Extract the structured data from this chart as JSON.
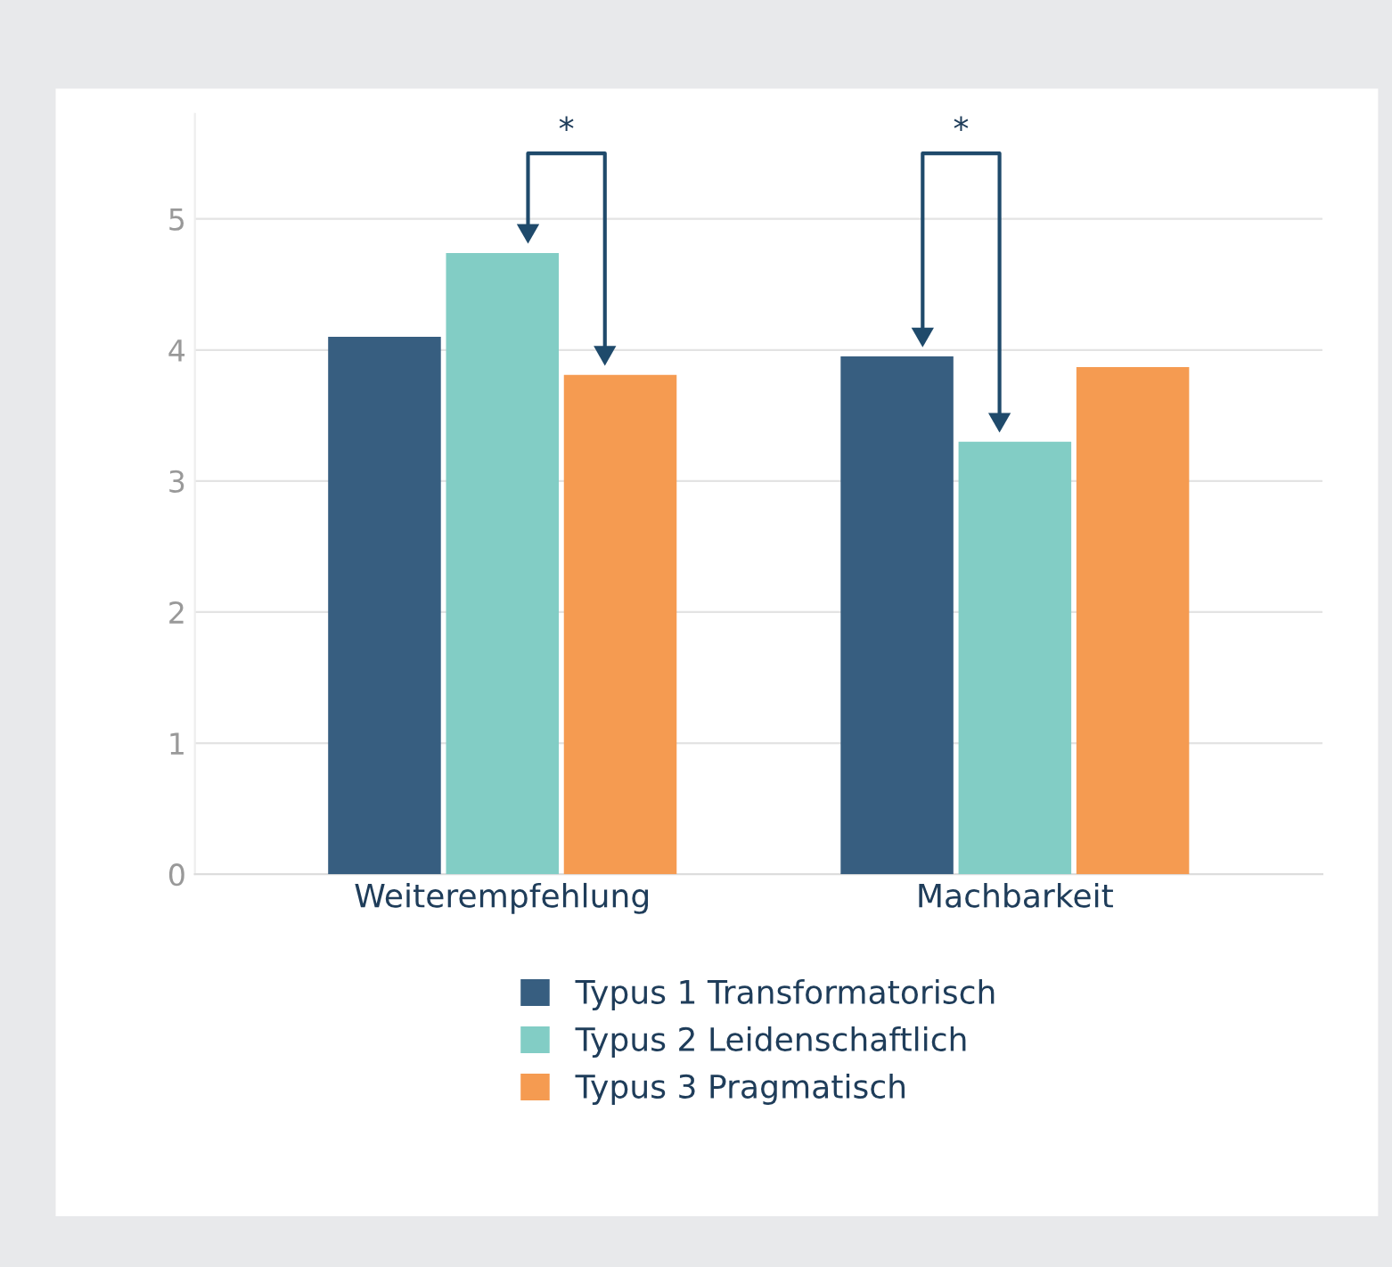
{
  "chart_data": {
    "type": "bar",
    "categories": [
      "Weiterempfehlung",
      "Machbarkeit"
    ],
    "series": [
      {
        "name": "Typus 1 Transformatorisch",
        "color": "#375e80",
        "values": [
          4.1,
          3.95
        ]
      },
      {
        "name": "Typus 2 Leidenschaftlich",
        "color": "#82cdc5",
        "values": [
          4.74,
          3.3
        ]
      },
      {
        "name": "Typus 3 Pragmatisch",
        "color": "#f59b51",
        "values": [
          3.81,
          3.87
        ]
      }
    ],
    "ylim": [
      0,
      5.8
    ],
    "yticks": [
      0,
      1,
      2,
      3,
      4,
      5
    ],
    "grid": "y",
    "legend": "bottom",
    "annotations": [
      "*",
      "*"
    ]
  }
}
